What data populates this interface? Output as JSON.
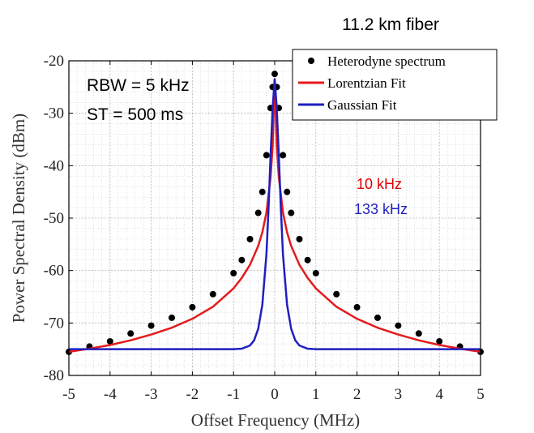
{
  "chart_data": {
    "type": "scatter",
    "title": "11.2 km fiber",
    "xlabel": "Offset Frequency (MHz)",
    "ylabel": "Power Spectral Density (dBm)",
    "xlim": [
      -5,
      5
    ],
    "ylim": [
      -80,
      -20
    ],
    "xticks": [
      -5,
      -4,
      -3,
      -2,
      -1,
      0,
      1,
      2,
      3,
      4,
      5
    ],
    "yticks": [
      -80,
      -70,
      -60,
      -50,
      -40,
      -30,
      -20
    ],
    "grid": true,
    "minor_grid": true,
    "legend_position": "top-right",
    "annotations": {
      "rbw": "RBW =  5 kHz",
      "st": "ST = 500 ms",
      "lorentz_width": "10 kHz",
      "gauss_width": "133 kHz"
    },
    "series": [
      {
        "name": "Heterodyne spectrum",
        "kind": "points",
        "color": "#000000",
        "x": [
          -5.0,
          -4.5,
          -4.0,
          -3.5,
          -3.0,
          -2.5,
          -2.0,
          -1.5,
          -1.0,
          -0.8,
          -0.6,
          -0.4,
          -0.3,
          -0.2,
          -0.1,
          -0.05,
          0.0,
          0.05,
          0.1,
          0.2,
          0.3,
          0.4,
          0.6,
          0.8,
          1.0,
          1.5,
          2.0,
          2.5,
          3.0,
          3.5,
          4.0,
          4.5,
          5.0
        ],
        "y": [
          -75.5,
          -74.5,
          -73.5,
          -72,
          -70.5,
          -69,
          -67,
          -64.5,
          -60.5,
          -58,
          -54,
          -49,
          -45,
          -38,
          -29,
          -25,
          -22.5,
          -25,
          -29,
          -38,
          -45,
          -49,
          -54,
          -58,
          -60.5,
          -64.5,
          -67,
          -69,
          -70.5,
          -72,
          -73.5,
          -74.5,
          -75.5
        ]
      },
      {
        "name": "Lorentzian Fit",
        "kind": "line",
        "color": "#e41a1c",
        "x": [
          -5.0,
          -4.5,
          -4.0,
          -3.5,
          -3.0,
          -2.5,
          -2.0,
          -1.5,
          -1.0,
          -0.8,
          -0.6,
          -0.4,
          -0.3,
          -0.2,
          -0.1,
          -0.05,
          0.0,
          0.05,
          0.1,
          0.2,
          0.3,
          0.4,
          0.6,
          0.8,
          1.0,
          1.5,
          2.0,
          2.5,
          3.0,
          3.5,
          4.0,
          4.5,
          5.0
        ],
        "y": [
          -75.5,
          -74.9,
          -74.2,
          -73.3,
          -72.2,
          -70.9,
          -69.2,
          -66.9,
          -63.4,
          -61.4,
          -58.9,
          -55.3,
          -52.7,
          -48.9,
          -42.2,
          -36.3,
          -23.5,
          -36.3,
          -42.2,
          -48.9,
          -52.7,
          -55.3,
          -58.9,
          -61.4,
          -63.4,
          -66.9,
          -69.2,
          -70.9,
          -72.2,
          -73.3,
          -74.2,
          -74.9,
          -75.5
        ]
      },
      {
        "name": "Gaussian Fit",
        "kind": "line",
        "color": "#1f1fbf",
        "x": [
          -5.0,
          -2.0,
          -1.0,
          -0.8,
          -0.6,
          -0.5,
          -0.4,
          -0.3,
          -0.2,
          -0.15,
          -0.1,
          -0.05,
          0.0,
          0.05,
          0.1,
          0.15,
          0.2,
          0.3,
          0.4,
          0.5,
          0.6,
          0.8,
          1.0,
          2.0,
          5.0
        ],
        "y": [
          -75.0,
          -75.0,
          -75.0,
          -74.9,
          -74.3,
          -73.3,
          -71.1,
          -66.5,
          -56.8,
          -48.2,
          -38.0,
          -29.0,
          -23.5,
          -29.0,
          -38.0,
          -48.2,
          -56.8,
          -66.5,
          -71.1,
          -73.3,
          -74.3,
          -74.9,
          -75.0,
          -75.0,
          -75.0
        ]
      }
    ]
  }
}
